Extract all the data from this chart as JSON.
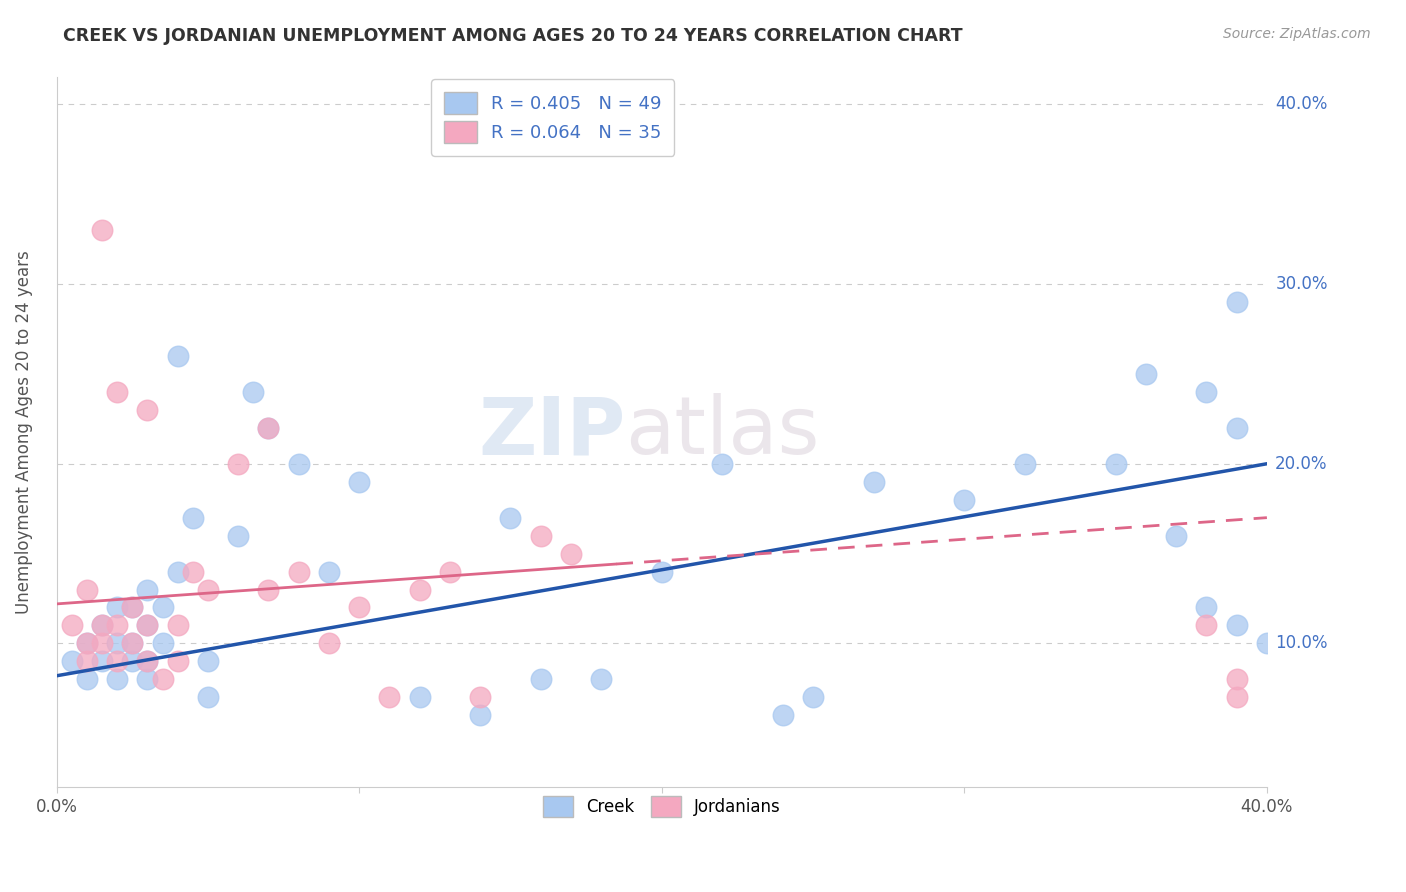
{
  "title": "CREEK VS JORDANIAN UNEMPLOYMENT AMONG AGES 20 TO 24 YEARS CORRELATION CHART",
  "source": "Source: ZipAtlas.com",
  "ylabel": "Unemployment Among Ages 20 to 24 years",
  "x_min": 0.0,
  "x_max": 0.4,
  "y_min": 0.0,
  "y_max": 0.4,
  "creek_R": 0.405,
  "creek_N": 49,
  "jordanian_R": 0.064,
  "jordanian_N": 35,
  "creek_color": "#A8C8F0",
  "jordanian_color": "#F4A8C0",
  "creek_line_color": "#2255AA",
  "jordanian_line_color": "#DD6688",
  "legend_creek_label": "Creek",
  "legend_jordanian_label": "Jordanians",
  "watermark_zip": "ZIP",
  "watermark_atlas": "atlas",
  "creek_x": [
    0.005,
    0.01,
    0.01,
    0.015,
    0.015,
    0.02,
    0.02,
    0.02,
    0.025,
    0.025,
    0.025,
    0.03,
    0.03,
    0.03,
    0.03,
    0.035,
    0.035,
    0.04,
    0.04,
    0.045,
    0.05,
    0.05,
    0.06,
    0.065,
    0.07,
    0.08,
    0.09,
    0.1,
    0.12,
    0.14,
    0.15,
    0.16,
    0.18,
    0.2,
    0.22,
    0.24,
    0.25,
    0.27,
    0.3,
    0.32,
    0.35,
    0.36,
    0.37,
    0.38,
    0.38,
    0.39,
    0.39,
    0.39,
    0.4
  ],
  "creek_y": [
    0.09,
    0.08,
    0.1,
    0.09,
    0.11,
    0.08,
    0.1,
    0.12,
    0.09,
    0.1,
    0.12,
    0.08,
    0.09,
    0.11,
    0.13,
    0.1,
    0.12,
    0.26,
    0.14,
    0.17,
    0.07,
    0.09,
    0.16,
    0.24,
    0.22,
    0.2,
    0.14,
    0.19,
    0.07,
    0.06,
    0.17,
    0.08,
    0.08,
    0.14,
    0.2,
    0.06,
    0.07,
    0.19,
    0.18,
    0.2,
    0.2,
    0.25,
    0.16,
    0.12,
    0.24,
    0.22,
    0.29,
    0.11,
    0.1
  ],
  "jordanian_x": [
    0.005,
    0.01,
    0.01,
    0.01,
    0.015,
    0.015,
    0.015,
    0.02,
    0.02,
    0.02,
    0.025,
    0.025,
    0.03,
    0.03,
    0.03,
    0.035,
    0.04,
    0.04,
    0.045,
    0.05,
    0.06,
    0.07,
    0.07,
    0.08,
    0.09,
    0.1,
    0.11,
    0.12,
    0.13,
    0.14,
    0.16,
    0.17,
    0.38,
    0.39,
    0.39
  ],
  "jordanian_y": [
    0.11,
    0.09,
    0.1,
    0.13,
    0.1,
    0.11,
    0.33,
    0.09,
    0.11,
    0.24,
    0.1,
    0.12,
    0.09,
    0.11,
    0.23,
    0.08,
    0.09,
    0.11,
    0.14,
    0.13,
    0.2,
    0.13,
    0.22,
    0.14,
    0.1,
    0.12,
    0.07,
    0.13,
    0.14,
    0.07,
    0.16,
    0.15,
    0.11,
    0.07,
    0.08
  ]
}
